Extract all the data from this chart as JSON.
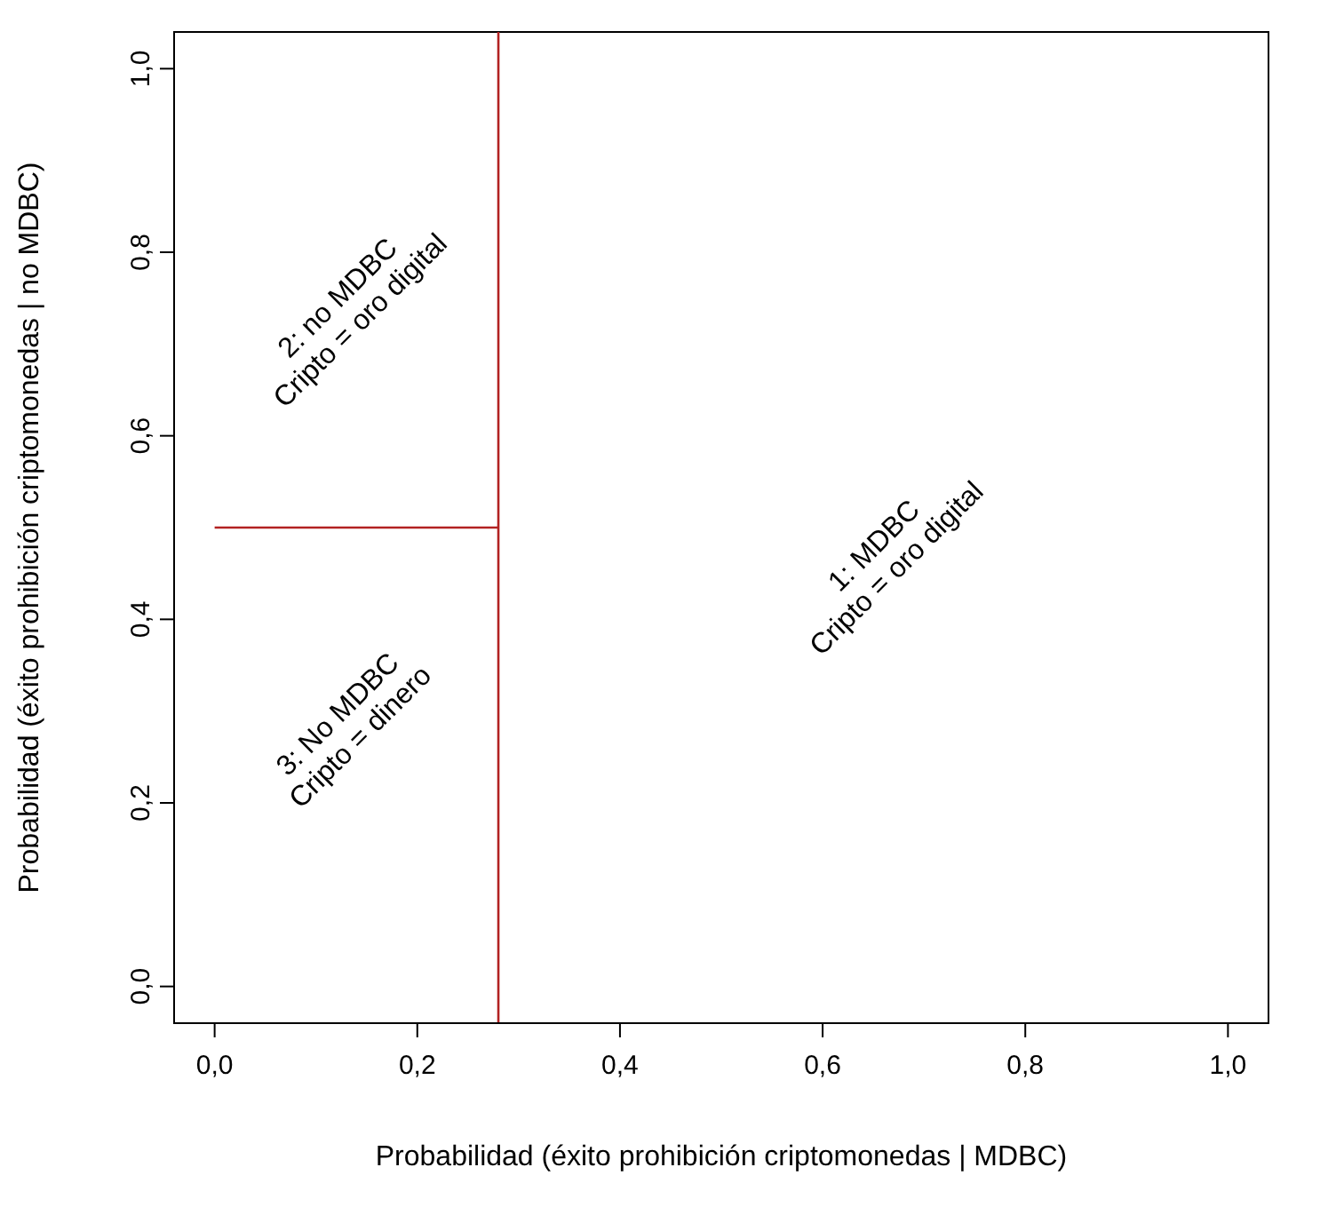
{
  "chart_data": {
    "type": "line",
    "xlabel": "Probabilidad (éxito prohibición criptomonedas | MDBC)",
    "ylabel": "Probabilidad (éxito prohibición criptomonedas | no MDBC)",
    "xlim": [
      -0.04,
      1.04
    ],
    "ylim": [
      -0.04,
      1.04
    ],
    "xticks": [
      {
        "value": 0,
        "label": "0,0"
      },
      {
        "value": 0.2,
        "label": "0,2"
      },
      {
        "value": 0.4,
        "label": "0,4"
      },
      {
        "value": 0.6,
        "label": "0,6"
      },
      {
        "value": 0.8,
        "label": "0,8"
      },
      {
        "value": 1,
        "label": "1,0"
      }
    ],
    "yticks": [
      {
        "value": 0,
        "label": "0,0"
      },
      {
        "value": 0.2,
        "label": "0,2"
      },
      {
        "value": 0.4,
        "label": "0,4"
      },
      {
        "value": 0.6,
        "label": "0,6"
      },
      {
        "value": 0.8,
        "label": "0,8"
      },
      {
        "value": 1,
        "label": "1,0"
      }
    ],
    "series": [
      {
        "color": "#b22222",
        "x": [
          0,
          0.28
        ],
        "values": [
          0.5,
          0.5
        ]
      }
    ],
    "ref_lines": [
      {
        "axis": "x",
        "value": 0.28,
        "color": "#b22222"
      }
    ],
    "annotations": [
      "1: MDBC\nCripto = oro digital",
      "2: no MDBC\nCripto = oro digital",
      "3: No MDBC\nCripto = dinero"
    ],
    "grid": false,
    "legend": false,
    "marker": "none"
  }
}
